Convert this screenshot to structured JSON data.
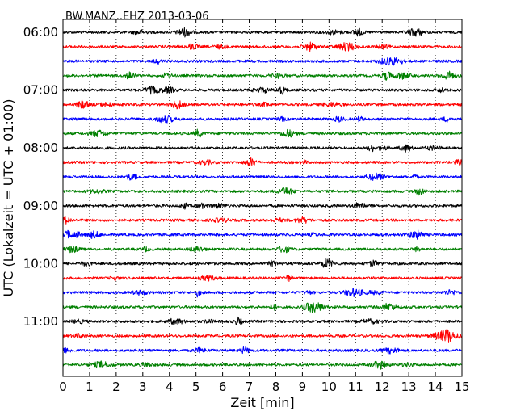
{
  "chart_data": {
    "type": "line",
    "title": "BW.MANZ..EHZ 2013-03-06",
    "xlabel": "Zeit  [min]",
    "ylabel": "UTC (Lokalzeit = UTC + 01:00)",
    "xlim": [
      0,
      15
    ],
    "x_ticks": [
      "0",
      "1",
      "2",
      "3",
      "4",
      "5",
      "6",
      "7",
      "8",
      "9",
      "10",
      "11",
      "12",
      "13",
      "14",
      "15"
    ],
    "y_tick_labels": [
      "06:00",
      "07:00",
      "08:00",
      "09:00",
      "10:00",
      "11:00"
    ],
    "grid": "vertical dotted",
    "colors": [
      "#000000",
      "#ff0000",
      "#0000ff",
      "#008000"
    ],
    "traces": [
      {
        "start": "06:00",
        "color": "#000000"
      },
      {
        "start": "06:15",
        "color": "#ff0000"
      },
      {
        "start": "06:30",
        "color": "#0000ff"
      },
      {
        "start": "06:45",
        "color": "#008000"
      },
      {
        "start": "07:00",
        "color": "#000000"
      },
      {
        "start": "07:15",
        "color": "#ff0000"
      },
      {
        "start": "07:30",
        "color": "#0000ff"
      },
      {
        "start": "07:45",
        "color": "#008000"
      },
      {
        "start": "08:00",
        "color": "#000000"
      },
      {
        "start": "08:15",
        "color": "#ff0000"
      },
      {
        "start": "08:30",
        "color": "#0000ff"
      },
      {
        "start": "08:45",
        "color": "#008000"
      },
      {
        "start": "09:00",
        "color": "#000000"
      },
      {
        "start": "09:15",
        "color": "#ff0000"
      },
      {
        "start": "09:30",
        "color": "#0000ff"
      },
      {
        "start": "09:45",
        "color": "#008000"
      },
      {
        "start": "10:00",
        "color": "#000000"
      },
      {
        "start": "10:15",
        "color": "#ff0000"
      },
      {
        "start": "10:30",
        "color": "#0000ff"
      },
      {
        "start": "10:45",
        "color": "#008000"
      },
      {
        "start": "11:00",
        "color": "#000000"
      },
      {
        "start": "11:15",
        "color": "#ff0000"
      },
      {
        "start": "11:30",
        "color": "#0000ff"
      },
      {
        "start": "11:45",
        "color": "#008000"
      }
    ]
  }
}
